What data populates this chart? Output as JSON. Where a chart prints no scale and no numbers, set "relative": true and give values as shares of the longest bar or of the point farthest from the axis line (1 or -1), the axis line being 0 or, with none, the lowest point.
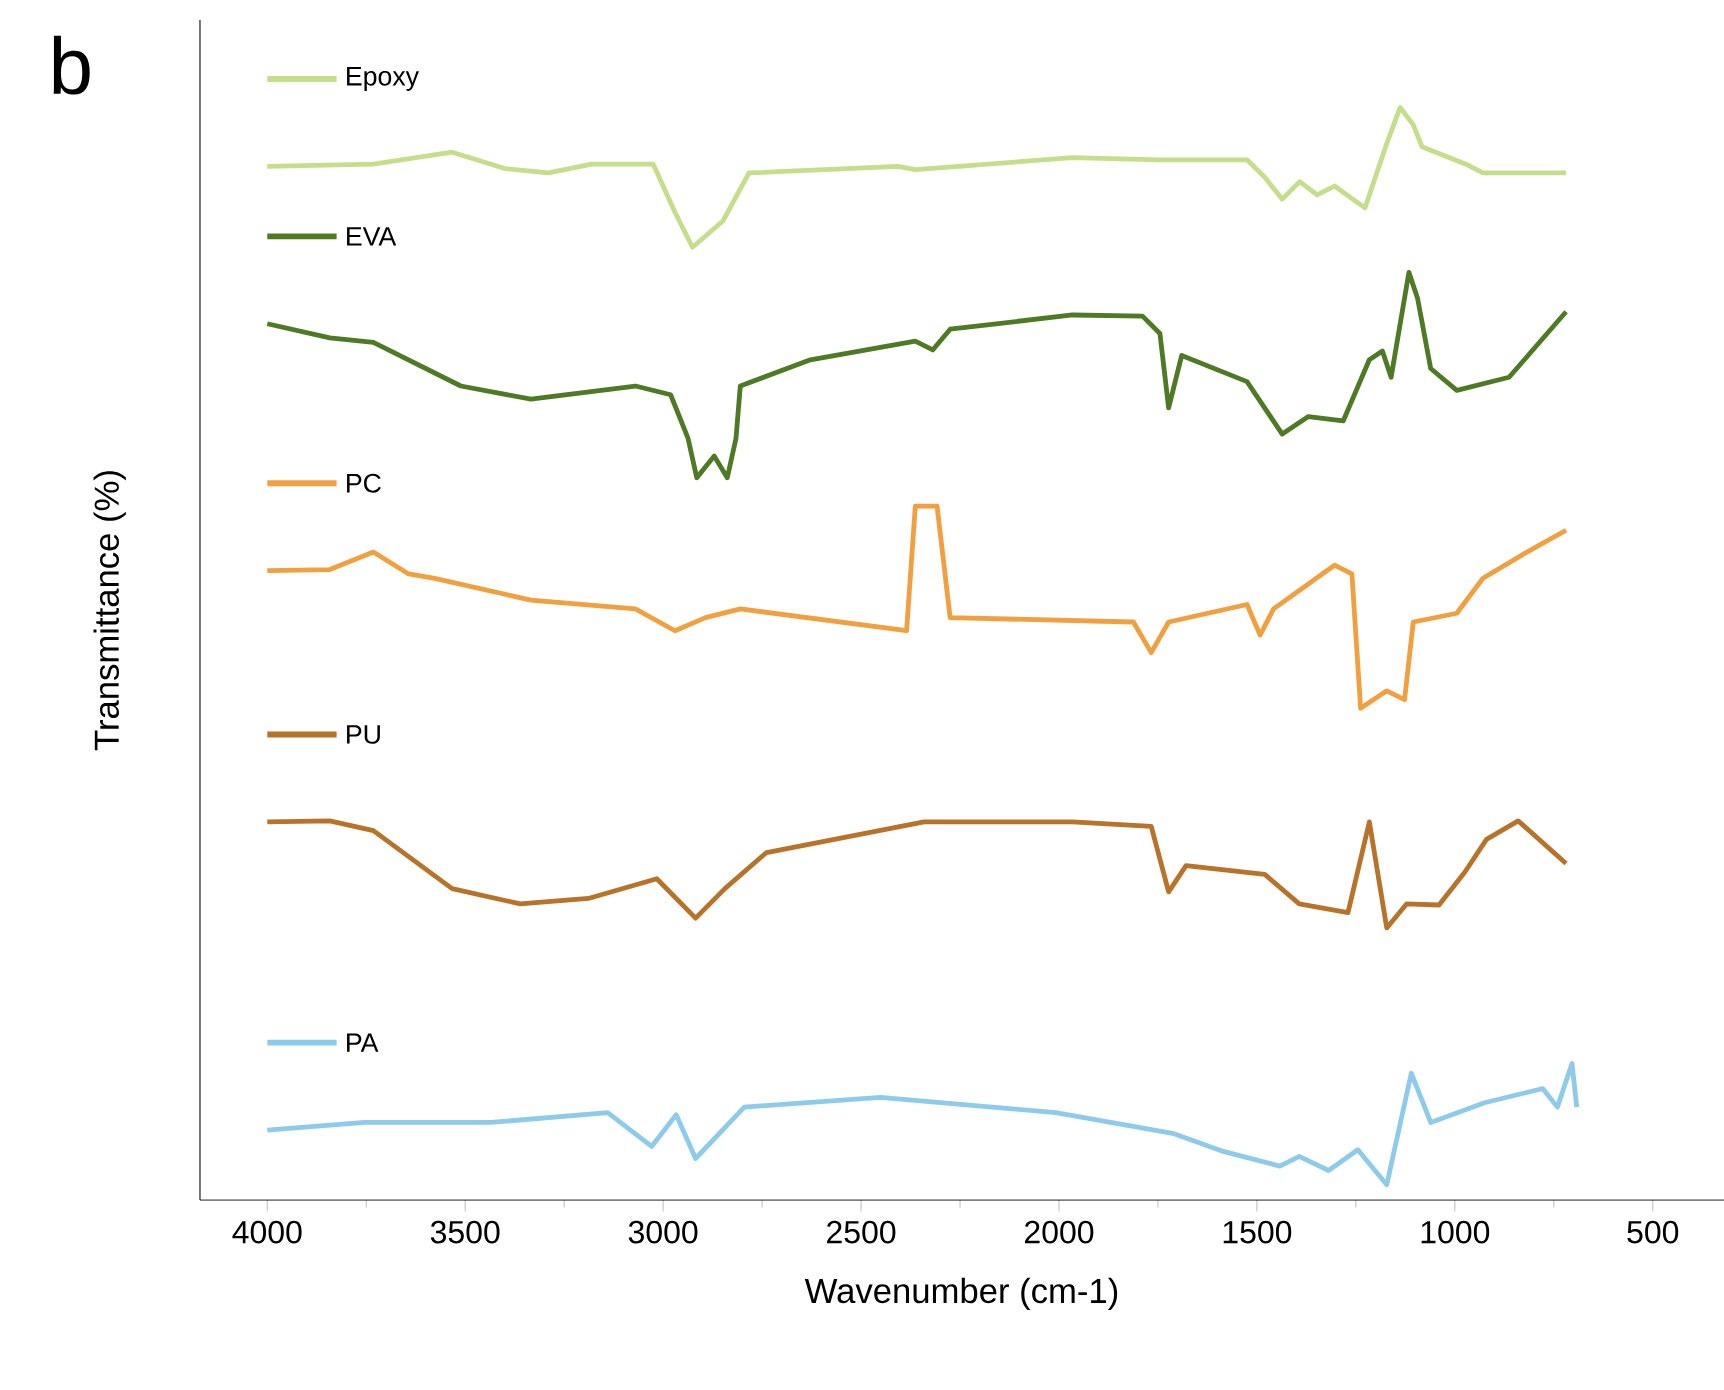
{
  "chart_data": {
    "type": "line",
    "relative": true,
    "xlabel": "Wavenumber (cm-1)",
    "ylabel": "Transmittance (%)",
    "annotations": [
      "b"
    ],
    "xlim": [
      4170,
      320
    ],
    "xticks": [
      4000,
      3500,
      3000,
      2500,
      2000,
      1500,
      1000,
      500
    ],
    "legend": "left",
    "marker": "none",
    "line_style": "solid",
    "series": [
      {
        "name": "Epoxy",
        "color": "#c5de8c",
        "x": [
          4000,
          3732,
          3533,
          3400,
          3290,
          3180,
          3025,
          2970,
          2926,
          2849,
          2783,
          2407,
          2363,
          1966,
          1745,
          1525,
          1480,
          1436,
          1392,
          1348,
          1304,
          1227,
          1171,
          1138,
          1105,
          1083,
          972,
          929,
          719
        ],
        "values": [
          0.946,
          0.948,
          0.959,
          0.944,
          0.94,
          0.948,
          0.948,
          0.904,
          0.872,
          0.896,
          0.94,
          0.946,
          0.943,
          0.954,
          0.952,
          0.952,
          0.936,
          0.916,
          0.932,
          0.92,
          0.928,
          0.908,
          0.968,
          1.0,
          0.984,
          0.964,
          0.948,
          0.94,
          0.94
        ]
      },
      {
        "name": "EVA",
        "color": "#4e7a26",
        "x": [
          4000,
          3842,
          3732,
          3511,
          3334,
          3070,
          2981,
          2937,
          2915,
          2871,
          2838,
          2816,
          2805,
          2628,
          2363,
          2319,
          2275,
          1966,
          1789,
          1745,
          1723,
          1690,
          1525,
          1436,
          1370,
          1282,
          1216,
          1183,
          1161,
          1116,
          1094,
          1061,
          995,
          863,
          719
        ],
        "values": [
          0.802,
          0.789,
          0.785,
          0.745,
          0.733,
          0.745,
          0.737,
          0.697,
          0.661,
          0.681,
          0.661,
          0.697,
          0.745,
          0.769,
          0.786,
          0.778,
          0.797,
          0.81,
          0.809,
          0.793,
          0.725,
          0.773,
          0.749,
          0.701,
          0.717,
          0.713,
          0.769,
          0.777,
          0.753,
          0.849,
          0.825,
          0.761,
          0.741,
          0.753,
          0.813
        ]
      },
      {
        "name": "PC",
        "color": "#f0a040",
        "x": [
          4000,
          3842,
          3732,
          3643,
          3577,
          3334,
          3070,
          2970,
          2893,
          2805,
          2385,
          2363,
          2308,
          2275,
          1812,
          1767,
          1723,
          1525,
          1492,
          1458,
          1304,
          1260,
          1238,
          1172,
          1127,
          1105,
          995,
          929,
          818,
          719
        ],
        "values": [
          0.576,
          0.577,
          0.593,
          0.573,
          0.569,
          0.549,
          0.541,
          0.521,
          0.533,
          0.541,
          0.521,
          0.635,
          0.635,
          0.533,
          0.529,
          0.501,
          0.529,
          0.545,
          0.517,
          0.541,
          0.581,
          0.573,
          0.45,
          0.466,
          0.458,
          0.529,
          0.537,
          0.569,
          0.593,
          0.613
        ]
      },
      {
        "name": "PU",
        "color": "#b8732a",
        "x": [
          4000,
          3842,
          3732,
          3533,
          3361,
          3189,
          3016,
          2918,
          2844,
          2739,
          2341,
          1966,
          1767,
          1723,
          1679,
          1480,
          1393,
          1270,
          1216,
          1172,
          1122,
          1040,
          975,
          920,
          840,
          719
        ],
        "values": [
          0.346,
          0.347,
          0.338,
          0.285,
          0.271,
          0.276,
          0.294,
          0.258,
          0.285,
          0.318,
          0.346,
          0.346,
          0.342,
          0.282,
          0.306,
          0.298,
          0.271,
          0.263,
          0.346,
          0.249,
          0.271,
          0.27,
          0.3,
          0.33,
          0.347,
          0.308
        ]
      },
      {
        "name": "PA",
        "color": "#8ecbea",
        "x": [
          4000,
          3754,
          3435,
          3140,
          3029,
          2967,
          2918,
          2795,
          2451,
          2008,
          1713,
          1590,
          1442,
          1393,
          1319,
          1245,
          1172,
          1110,
          1061,
          925,
          778,
          741,
          704,
          692
        ],
        "values": [
          0.064,
          0.071,
          0.071,
          0.08,
          0.049,
          0.078,
          0.038,
          0.085,
          0.094,
          0.08,
          0.061,
          0.045,
          0.031,
          0.04,
          0.027,
          0.046,
          0.014,
          0.116,
          0.071,
          0.089,
          0.102,
          0.085,
          0.125,
          0.085
        ]
      }
    ]
  }
}
